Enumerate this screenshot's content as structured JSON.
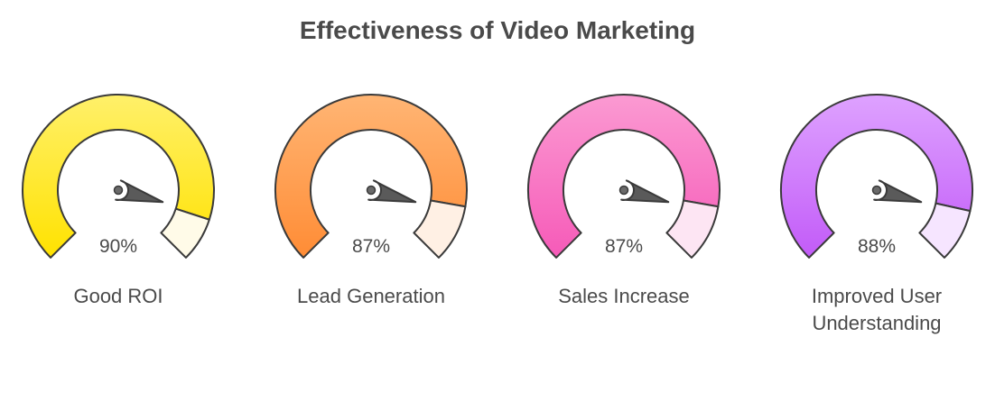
{
  "title": "Effectiveness of Video Marketing",
  "chart_data": {
    "type": "gauge",
    "title": "Effectiveness of Video Marketing",
    "max": 100,
    "unit": "%",
    "gauges": [
      {
        "label": "Good ROI",
        "value": 90,
        "value_label": "90%",
        "color_top": "#fff06a",
        "color_bottom": "#ffe200",
        "remainder_color": "#fffbe8"
      },
      {
        "label": "Lead Generation",
        "value": 87,
        "value_label": "87%",
        "color_top": "#ffb574",
        "color_bottom": "#ff8c35",
        "remainder_color": "#fff0e4"
      },
      {
        "label": "Sales Increase",
        "value": 87,
        "value_label": "87%",
        "color_top": "#fb9ad2",
        "color_bottom": "#f65ab8",
        "remainder_color": "#fde5f3"
      },
      {
        "label": "Improved User Understanding",
        "value": 88,
        "value_label": "88%",
        "color_top": "#dea2ff",
        "color_bottom": "#c25bf8",
        "remainder_color": "#f6e5ff"
      }
    ]
  }
}
